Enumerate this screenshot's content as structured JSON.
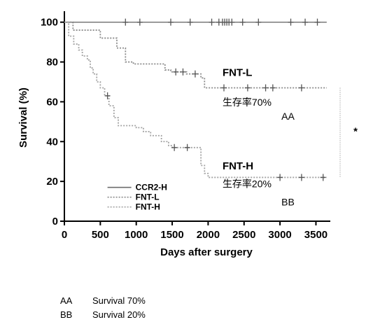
{
  "chart_data": {
    "type": "line",
    "chart_kind": "kaplan-meier survival",
    "xlabel": "Days after surgery",
    "ylabel": "Survival (%)",
    "xlim": [
      0,
      3700
    ],
    "ylim": [
      0,
      102
    ],
    "xticks": [
      0,
      500,
      1000,
      1500,
      2000,
      2500,
      3000,
      3500
    ],
    "yticks": [
      0,
      20,
      40,
      60,
      80,
      100
    ],
    "grid": false,
    "legend_position": "lower-left",
    "series": [
      {
        "name": "CCR2-H",
        "style": "solid",
        "color": "#6e6e6e",
        "x": [
          0,
          3650
        ],
        "y": [
          100,
          100
        ],
        "censor_x": [
          850,
          1050,
          1480,
          1750,
          2050,
          2150,
          2200,
          2230,
          2260,
          2290,
          2330,
          2480,
          2700,
          3150,
          3350,
          3520
        ],
        "censor_y": 100
      },
      {
        "name": "FNT-L",
        "style": "dotted",
        "color": "#8a8a8a",
        "x": [
          0,
          120,
          500,
          730,
          850,
          960,
          1400,
          1480,
          1700,
          1900,
          1950,
          2200,
          3650
        ],
        "y": [
          100,
          96,
          92,
          87,
          80,
          79,
          76,
          75,
          74,
          72,
          67,
          67,
          67
        ],
        "censor_x": [
          1550,
          1650,
          1820,
          2220,
          2550,
          2800,
          2900,
          3300
        ],
        "censor_y": [
          75,
          75,
          74,
          67,
          67,
          67,
          67,
          67
        ]
      },
      {
        "name": "FNT-H",
        "style": "dotted",
        "color": "#a3a3a3",
        "x": [
          0,
          60,
          130,
          200,
          250,
          320,
          360,
          400,
          450,
          500,
          560,
          620,
          690,
          750,
          790,
          850,
          900,
          1000,
          1100,
          1200,
          1350,
          1450,
          1500,
          1800,
          1900,
          1950,
          2000,
          3650
        ],
        "y": [
          100,
          93,
          89,
          86,
          83,
          81,
          77,
          74,
          70,
          67,
          63,
          58,
          52,
          48,
          48,
          48,
          48,
          47,
          45,
          43,
          40,
          38,
          37,
          37,
          28,
          24,
          22,
          22
        ],
        "censor_x": [
          600,
          1530,
          1710,
          3000,
          3300,
          3600
        ],
        "censor_y": [
          63,
          37,
          37,
          22,
          22,
          22
        ]
      }
    ],
    "annotations": [
      {
        "text": "FNT-L",
        "x": 2200,
        "y": 73
      },
      {
        "text": "生存率70%",
        "x": 2200,
        "y": 58
      },
      {
        "text": "AA",
        "x": 3020,
        "y": 51
      },
      {
        "text": "FNT-H",
        "x": 2200,
        "y": 26
      },
      {
        "text": "生存率20%",
        "x": 2200,
        "y": 17
      },
      {
        "text": "BB",
        "x": 3020,
        "y": 8
      },
      {
        "text": "*",
        "side": "right"
      }
    ]
  },
  "footnotes": [
    {
      "key": "AA",
      "text": "Survival 70%"
    },
    {
      "key": "BB",
      "text": "Survival 20%"
    }
  ]
}
